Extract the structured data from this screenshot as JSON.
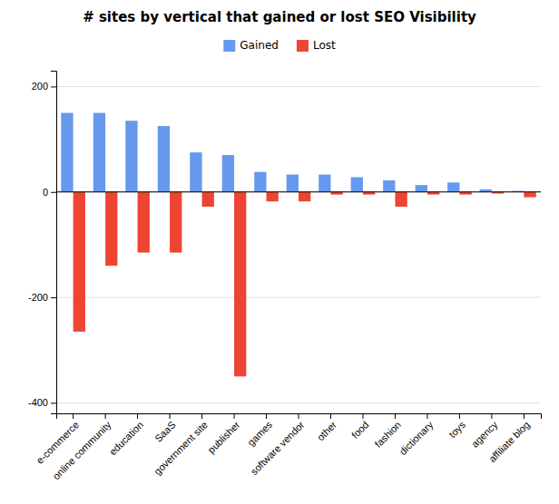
{
  "chart_data": {
    "type": "bar",
    "title": "# sites by vertical that gained or lost SEO Visibility",
    "categories": [
      "e-commerce",
      "online community",
      "education",
      "SaaS",
      "government site",
      "publisher",
      "games",
      "software vendor",
      "other",
      "food",
      "fashion",
      "dictionary",
      "toys",
      "agency",
      "affiliate blog"
    ],
    "series": [
      {
        "name": "Gained",
        "color": "#6699ee",
        "values": [
          150,
          150,
          135,
          125,
          75,
          70,
          38,
          33,
          33,
          28,
          22,
          13,
          18,
          5,
          2
        ]
      },
      {
        "name": "Lost",
        "color": "#ee4433",
        "values": [
          -265,
          -140,
          -115,
          -115,
          -28,
          -350,
          -18,
          -18,
          -5,
          -5,
          -28,
          -5,
          -5,
          -3,
          -10
        ]
      }
    ],
    "ylim": [
      -420,
      230
    ],
    "yticks": [
      -400,
      -200,
      0,
      200
    ],
    "grid": true,
    "legend": "top"
  }
}
